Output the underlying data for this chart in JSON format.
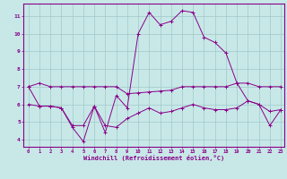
{
  "xlabel": "Windchill (Refroidissement éolien,°C)",
  "bg_color": "#c8e8e8",
  "grid_color": "#a0c8c8",
  "line_color": "#880088",
  "xlim": [
    -0.5,
    23.3
  ],
  "ylim": [
    3.6,
    11.7
  ],
  "xticks": [
    0,
    1,
    2,
    3,
    4,
    5,
    6,
    7,
    8,
    9,
    10,
    11,
    12,
    13,
    14,
    15,
    16,
    17,
    18,
    19,
    20,
    21,
    22,
    23
  ],
  "yticks": [
    4,
    5,
    6,
    7,
    8,
    9,
    10,
    11
  ],
  "line1_x": [
    0,
    1,
    2,
    3,
    4,
    5,
    6,
    7,
    8,
    9,
    10,
    11,
    12,
    13,
    14,
    15,
    16,
    17,
    18,
    19,
    20,
    21,
    22,
    23
  ],
  "line1_y": [
    7.0,
    7.2,
    7.0,
    7.0,
    7.0,
    7.0,
    7.0,
    7.0,
    7.0,
    6.6,
    6.65,
    6.7,
    6.75,
    6.8,
    7.0,
    7.0,
    7.0,
    7.0,
    7.0,
    7.2,
    7.2,
    7.0,
    7.0,
    7.0
  ],
  "line2_x": [
    0,
    1,
    2,
    3,
    4,
    5,
    6,
    7,
    8,
    9,
    10,
    11,
    12,
    13,
    14,
    15,
    16,
    17,
    18,
    19,
    20,
    21,
    22,
    23
  ],
  "line2_y": [
    7.0,
    5.9,
    5.9,
    5.8,
    4.7,
    3.9,
    5.9,
    4.4,
    6.5,
    5.8,
    10.0,
    11.2,
    10.5,
    10.7,
    11.3,
    11.2,
    9.8,
    9.5,
    8.9,
    7.2,
    6.2,
    6.0,
    4.8,
    5.7
  ],
  "line3_x": [
    0,
    1,
    2,
    3,
    4,
    5,
    6,
    7,
    8,
    9,
    10,
    11,
    12,
    13,
    14,
    15,
    16,
    17,
    18,
    19,
    20,
    21,
    22,
    23
  ],
  "line3_y": [
    6.0,
    5.9,
    5.9,
    5.8,
    4.8,
    4.8,
    5.9,
    4.8,
    4.7,
    5.2,
    5.5,
    5.8,
    5.5,
    5.6,
    5.8,
    6.0,
    5.8,
    5.7,
    5.7,
    5.8,
    6.2,
    6.0,
    5.6,
    5.7
  ]
}
